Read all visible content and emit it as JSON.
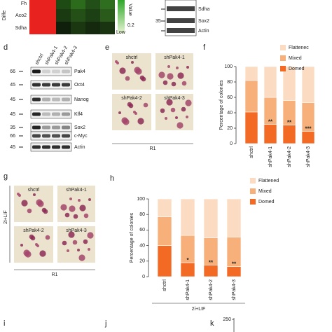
{
  "heatmap": {
    "side_label": "Diffe",
    "rows": [
      "Fh",
      "Aco2",
      "Sdha"
    ],
    "legend_title": "Value",
    "legend_low": "Low",
    "legend_value": "0.2"
  },
  "blot_top": {
    "rows": [
      {
        "label": "Sdha"
      },
      {
        "marker": "35",
        "label": "Sox2"
      },
      {
        "label": "Actin"
      }
    ]
  },
  "panel_d": {
    "letter": "d",
    "lanes": [
      "shctrl",
      "shPak4-1",
      "shPak4-2",
      "shPak4-3"
    ],
    "rows": [
      {
        "marker": "66",
        "label": "Pak4"
      },
      {
        "marker": "45",
        "label": "Oct4"
      },
      {
        "marker": "45",
        "label": "Nanog"
      },
      {
        "marker": "45",
        "label": "Klf4"
      },
      {
        "marker": "35",
        "label": "Sox2"
      },
      {
        "marker": "66",
        "label": "c-Myc"
      },
      {
        "marker": "45",
        "label": "Actin"
      }
    ]
  },
  "panel_e": {
    "letter": "e",
    "images": [
      "shctrl",
      "shPak4-1",
      "shPak4-2",
      "shPak4-3"
    ],
    "cell_line": "R1"
  },
  "panel_g": {
    "letter": "g",
    "images": [
      "shctrl",
      "shPak4-1",
      "shPak4-2",
      "shPak4-3"
    ],
    "cell_line": "R1",
    "condition": "2i+LIF"
  },
  "chart_data": [
    {
      "type": "stacked_bar",
      "letter": "f",
      "y_label": "Percentage of colonies",
      "categories": [
        "shctrl",
        "shPak4-1",
        "shPak4-2",
        "shPak4-3"
      ],
      "series": [
        {
          "name": "Domed",
          "color": "#f26a24",
          "values": [
            41,
            25,
            24,
            16
          ]
        },
        {
          "name": "Mixed",
          "color": "#f7b07a",
          "values": [
            41,
            35,
            32,
            37
          ]
        },
        {
          "name": "Flattenec",
          "color": "#fbdcc2",
          "values": [
            18,
            40,
            44,
            47
          ]
        }
      ],
      "annotations": [
        null,
        "**",
        "**",
        "***"
      ],
      "ylim": [
        0,
        100
      ],
      "yticks": [
        0,
        20,
        40,
        60,
        80,
        100
      ]
    },
    {
      "type": "stacked_bar",
      "letter": "h",
      "y_label": "Percentage of colonies",
      "categories": [
        "shctrl",
        "shPak4-1",
        "shPak4-2",
        "shPak4-3"
      ],
      "series": [
        {
          "name": "Domed",
          "color": "#f26a24",
          "values": [
            40,
            18,
            15,
            13
          ]
        },
        {
          "name": "Mixed",
          "color": "#f7b07a",
          "values": [
            37,
            35,
            35,
            38
          ]
        },
        {
          "name": "Flattened",
          "color": "#fbdcc2",
          "values": [
            23,
            47,
            50,
            49
          ]
        }
      ],
      "annotations": [
        null,
        "*",
        "**",
        "**"
      ],
      "group_label": "2i+LIF",
      "ylim": [
        0,
        100
      ],
      "yticks": [
        0,
        20,
        40,
        60,
        80,
        100
      ]
    }
  ],
  "bottom": {
    "letters": [
      "i",
      "j",
      "k"
    ],
    "k_tick": "250"
  }
}
